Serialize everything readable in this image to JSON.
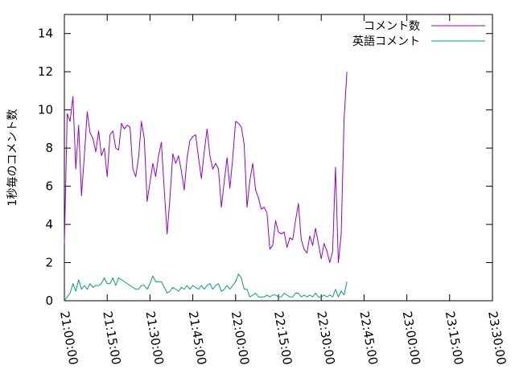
{
  "chart_data": {
    "type": "line",
    "title": "",
    "xlabel": "",
    "ylabel": "1秒毎のコメント数",
    "xlim": [
      "21:00:00",
      "23:30:00"
    ],
    "ylim": [
      0,
      15
    ],
    "grid": false,
    "legend_position": "top-right",
    "x_ticks": [
      "21:00:00",
      "21:15:00",
      "21:30:00",
      "21:45:00",
      "22:00:00",
      "22:15:00",
      "22:30:00",
      "22:45:00",
      "23:00:00",
      "23:15:00",
      "23:30:00"
    ],
    "y_ticks": [
      "0",
      "2",
      "4",
      "6",
      "8",
      "10",
      "12",
      "14"
    ],
    "x_start": "21:00:00",
    "x_step_seconds": 60,
    "series": [
      {
        "name": "コメント数",
        "color": "#9400d3",
        "values": [
          3.0,
          9.8,
          9.4,
          10.7,
          6.9,
          9.2,
          5.5,
          7.6,
          9.9,
          8.8,
          8.5,
          7.8,
          8.9,
          7.6,
          8.0,
          6.5,
          8.7,
          8.9,
          8.0,
          7.9,
          9.3,
          9.0,
          9.2,
          9.1,
          6.9,
          6.5,
          7.5,
          9.4,
          8.5,
          5.2,
          6.2,
          7.2,
          6.5,
          7.6,
          8.3,
          5.8,
          3.5,
          5.4,
          7.7,
          7.2,
          7.6,
          6.8,
          5.8,
          7.5,
          8.4,
          8.6,
          8.7,
          7.5,
          6.4,
          7.8,
          9.0,
          7.6,
          6.9,
          7.2,
          6.9,
          4.9,
          6.2,
          7.5,
          5.9,
          7.5,
          9.4,
          9.3,
          9.1,
          8.2,
          4.9,
          6.3,
          7.2,
          5.8,
          5.4,
          4.8,
          4.9,
          4.6,
          2.7,
          2.9,
          4.2,
          3.6,
          3.5,
          3.6,
          2.8,
          3.3,
          3.2,
          4.2,
          5.1,
          3.2,
          2.7,
          2.5,
          3.4,
          2.9,
          3.8,
          3.0,
          2.2,
          3.0,
          2.6,
          2.0,
          2.6,
          7.0,
          2.0,
          3.5,
          9.5,
          12.0
        ]
      },
      {
        "name": "英語コメント",
        "color": "#009e73",
        "values": [
          0.0,
          0.2,
          0.4,
          0.9,
          0.5,
          1.1,
          0.6,
          0.8,
          0.6,
          0.9,
          0.7,
          0.8,
          0.8,
          0.9,
          1.2,
          0.9,
          0.9,
          1.2,
          0.8,
          1.2,
          1.1,
          1.0,
          0.9,
          0.8,
          0.7,
          0.6,
          0.6,
          0.8,
          0.8,
          0.6,
          0.9,
          1.3,
          1.0,
          1.0,
          1.0,
          0.7,
          0.4,
          0.5,
          0.7,
          0.6,
          0.5,
          0.7,
          0.6,
          0.8,
          0.6,
          0.8,
          0.7,
          0.6,
          0.8,
          0.6,
          0.8,
          0.9,
          0.6,
          0.8,
          0.9,
          0.5,
          0.6,
          0.8,
          0.6,
          0.8,
          1.0,
          1.4,
          1.2,
          0.6,
          0.6,
          0.2,
          0.3,
          0.4,
          0.2,
          0.2,
          0.2,
          0.3,
          0.2,
          0.3,
          0.3,
          0.2,
          0.2,
          0.4,
          0.3,
          0.2,
          0.2,
          0.4,
          0.4,
          0.2,
          0.3,
          0.2,
          0.3,
          0.2,
          0.4,
          0.2,
          0.2,
          0.3,
          0.2,
          0.3,
          0.2,
          0.6,
          0.2,
          0.5,
          0.3,
          1.0
        ]
      }
    ]
  }
}
